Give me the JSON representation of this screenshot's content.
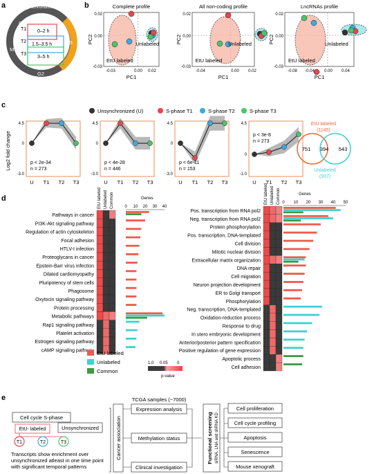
{
  "panels": {
    "a": "a",
    "b": "b",
    "c": "c",
    "d": "d",
    "e": "e"
  },
  "panel_a": {
    "title": "Unsynchronized cells",
    "phases": [
      "G1",
      "S",
      "G2",
      "M"
    ],
    "timepoints": [
      {
        "name": "T1",
        "range": "0–2 h"
      },
      {
        "name": "T2",
        "range": "1.5–3.5 h"
      },
      {
        "name": "T3",
        "range": "3–5 h"
      }
    ]
  },
  "panel_b": {
    "ylabel": "PC2",
    "xlabel": "PC1",
    "group_labels": {
      "etu": "EtU labeled",
      "unlab": "Unlabeled"
    },
    "plots": [
      {
        "title": "Complete profile",
        "yticks": [
          "0.02",
          "0.00",
          "-0.03"
        ],
        "xticks": [
          "-0.03",
          "0.00",
          "0.02"
        ]
      },
      {
        "title": "All non-coding profile",
        "yticks": [
          "0.02",
          "0.00",
          "-0.03"
        ],
        "xticks": [
          "-0.04",
          "0.00",
          "0.02"
        ]
      },
      {
        "title": "LncRNAs profile",
        "yticks": [
          "0.02",
          "0.00",
          "-0.03"
        ],
        "xticks": [
          "-0.08",
          "-0.04",
          "0.00",
          "0.04"
        ]
      }
    ]
  },
  "panel_c": {
    "legend": [
      "Unsynchronized (U)",
      "S-phase T1",
      "S-phase T2",
      "S-phase T3"
    ],
    "colors": {
      "U": "#333333",
      "T1": "#e8474d",
      "T2": "#3fa9e0",
      "T3": "#4cc46b",
      "etu": "#ee6a3c",
      "unlab": "#3ed1d1"
    },
    "ylabel": "Log2 fold change",
    "xticks": [
      "U",
      "T1",
      "T2",
      "T3"
    ],
    "plots": [
      {
        "yticks": [
          "4.5",
          "0",
          "-3.0"
        ],
        "p": "p < 2e-34",
        "n": "n = 273"
      },
      {
        "yticks": [
          "4.5",
          "0",
          "-3.0"
        ],
        "p": "p < 4e-28",
        "n": "n = 446"
      },
      {
        "yticks": [
          "4.5",
          "0",
          "-3.0"
        ],
        "p": "p < 6e-11",
        "n": "n = 153"
      },
      {
        "yticks": [
          "4.5",
          "0",
          "-1.0"
        ],
        "p": "p < 3e-8",
        "n": "n = 273"
      }
    ],
    "venn": {
      "etu_label": "EtU labeled",
      "etu_total": "(1145)",
      "unlab_label": "Unlabeled",
      "unlab_total": "(937)",
      "left": "751",
      "center": "394",
      "right": "543"
    }
  },
  "chart_data": [
    {
      "type": "bar",
      "title": "Genes",
      "columns": [
        "EtU labeled",
        "Unlabeled",
        "Common"
      ],
      "xticks": [
        "0",
        "10",
        "20",
        "30",
        "40"
      ],
      "categories": [
        "Pathways in cancer",
        "PI3K-Akt signaling pathway",
        "Regulation of actin cytoskeleton",
        "Focal adhesion",
        "HTLV-I infection",
        "Proteoglycans in cancer",
        "Epstein-Barr virus infection",
        "Dilated cardiomyopathy",
        "Pluripotency of stem cells",
        "Phagosome",
        "Oxytocin signaling pathway",
        "Protein processing",
        "Metabolic pathways",
        "Rap1 signaling pathway",
        "Platelet activation",
        "Estrogen signaling pathway",
        "cAMP signaling pathway"
      ],
      "series": [
        {
          "name": "EtU labeled",
          "values": [
            24,
            20,
            16,
            15,
            14,
            13,
            12,
            11,
            11,
            11,
            11,
            11,
            38,
            0,
            0,
            0,
            0
          ]
        },
        {
          "name": "Unlabeled",
          "values": [
            0,
            0,
            0,
            0,
            0,
            0,
            0,
            0,
            0,
            0,
            0,
            0,
            40,
            14,
            12,
            11,
            10
          ]
        },
        {
          "name": "Common",
          "values": [
            16,
            0,
            0,
            0,
            0,
            0,
            0,
            0,
            0,
            0,
            0,
            0,
            22,
            0,
            0,
            0,
            0
          ]
        }
      ]
    },
    {
      "type": "bar",
      "title": "Genes",
      "columns": [
        "EtU labeled",
        "Unlabeled",
        "Common"
      ],
      "xticks": [
        "0",
        "10",
        "20",
        "30",
        "40",
        "50"
      ],
      "categories": [
        "Pos. transcription from RNA pol2",
        "Neg. transcription from RNA pol2",
        "Protein phosphorylation",
        "Pos. transcription, DNA-templated",
        "Cell division",
        "Mitotic nuclear division",
        "Extracellular matrix organization",
        "DNA repair",
        "Cell migration",
        "Neuron projection development",
        "ER to Golgi transport",
        "Phosphorylation",
        "Neg. transcription, DNA-templated",
        "Oxidation-reduction process",
        "Response to drug",
        "In utero embryonic development",
        "Anterior/posterior pattern specification",
        "Positive regulation of gene expression",
        "Apoptotic process",
        "Cell adhesion"
      ],
      "series": [
        {
          "name": "EtU labeled",
          "values": [
            42,
            36,
            30,
            27,
            24,
            21,
            18,
            18,
            17,
            16,
            15,
            14,
            0,
            0,
            0,
            0,
            0,
            0,
            0,
            0
          ]
        },
        {
          "name": "Unlabeled",
          "values": [
            46,
            40,
            0,
            0,
            0,
            0,
            17,
            0,
            0,
            0,
            0,
            0,
            31,
            29,
            23,
            19,
            17,
            16,
            0,
            0
          ]
        },
        {
          "name": "Common",
          "values": [
            16,
            14,
            0,
            0,
            0,
            0,
            12,
            0,
            0,
            0,
            0,
            0,
            0,
            0,
            0,
            0,
            0,
            0,
            16,
            15
          ]
        }
      ]
    }
  ],
  "panel_d": {
    "legend": [
      "EtU labeled",
      "Unlabeled",
      "Common"
    ],
    "pscale": {
      "ticks": [
        "1.0",
        "0.05",
        "0"
      ],
      "label": "p-value"
    }
  },
  "panel_e": {
    "cell_cycle": "Cell cycle S-phase",
    "etu": "EtU- labeled",
    "unsync": "Unsynchronized",
    "t": [
      "T1",
      "T2",
      "T3"
    ],
    "desc_lines": [
      "Transcripts show enrichment over",
      "unsynchronized atleast in one time point",
      "with significant temporal patterns"
    ],
    "tcga": "TCGA samples (~7000)",
    "analyses": [
      "Expression analysis",
      "Methylation status",
      "Clinical investigation"
    ],
    "cancer_assoc": "Cancer association",
    "functional": "Functional screening",
    "functional_sub": "siRNA, LNA and shRNA KD",
    "screens": [
      "Cell proliferation",
      "Cell cycle profiling",
      "Apoptosis",
      "Senescence",
      "Mouse xenograft"
    ]
  }
}
